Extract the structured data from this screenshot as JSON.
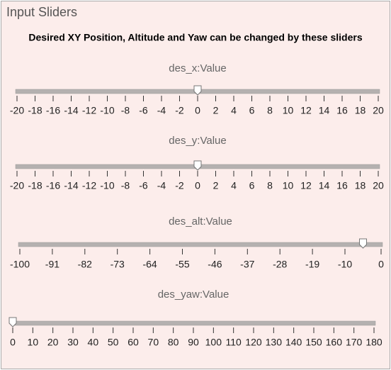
{
  "header": {
    "title": "Input Sliders",
    "subtitle": "Desired XY Position, Altitude and Yaw can be changed by these sliders"
  },
  "sliders": [
    {
      "label": "des_x:Value",
      "lim": [
        -20,
        20
      ],
      "value": 0,
      "ticks": [
        -20,
        -18,
        -16,
        -14,
        -12,
        -10,
        -8,
        -6,
        -4,
        -2,
        0,
        2,
        4,
        6,
        8,
        10,
        12,
        14,
        16,
        18,
        20
      ]
    },
    {
      "label": "des_y:Value",
      "lim": [
        -20,
        20
      ],
      "value": 0,
      "ticks": [
        -20,
        -18,
        -16,
        -14,
        -12,
        -10,
        -8,
        -6,
        -4,
        -2,
        0,
        2,
        4,
        6,
        8,
        10,
        12,
        14,
        16,
        18,
        20
      ]
    },
    {
      "label": "des_alt:Value",
      "lim": [
        -100,
        0
      ],
      "value": -5,
      "ticks": [
        -100,
        -91,
        -82,
        -73,
        -64,
        -55,
        -46,
        -37,
        -28,
        -19,
        -10,
        0
      ]
    },
    {
      "label": "des_yaw:Value",
      "lim": [
        0,
        180
      ],
      "value": 0,
      "ticks": [
        0,
        10,
        20,
        30,
        40,
        50,
        60,
        70,
        80,
        90,
        100,
        110,
        120,
        130,
        140,
        150,
        160,
        170,
        180
      ]
    }
  ]
}
